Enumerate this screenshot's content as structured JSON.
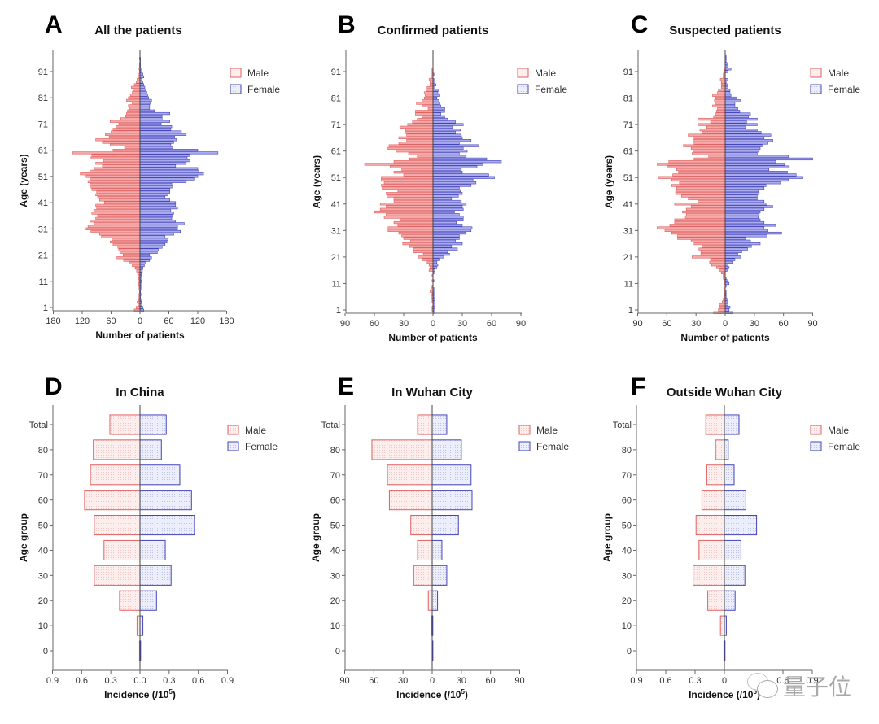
{
  "figure": {
    "watermark": "量子位",
    "colors": {
      "male_stroke": "#e06060",
      "male_fill_solid": "#f5a9a9",
      "female_stroke": "#4444bb",
      "female_fill_solid": "#a9abee",
      "male_fill_light": "#fdeeee",
      "female_fill_light": "#eceefb"
    }
  },
  "chart_data": [
    {
      "id": "A",
      "type": "bar",
      "orientation": "horizontal-population-pyramid",
      "letter": "A",
      "title": "All the patients",
      "xlabel": "Number of patients",
      "ylabel": "Age (years)",
      "xlim": [
        -180,
        180
      ],
      "x_ticks": [
        180,
        120,
        60,
        0,
        60,
        120,
        180
      ],
      "y_ticks": [
        "1",
        "11",
        "21",
        "31",
        "41",
        "51",
        "61",
        "71",
        "81",
        "91"
      ],
      "ylim": [
        0,
        99
      ],
      "legend": [
        "Male",
        "Female"
      ],
      "legend_position": "top-right",
      "ages_start": 0,
      "series": [
        {
          "name": "Male",
          "values": [
            12,
            8,
            4,
            6,
            3,
            2,
            2,
            1,
            2,
            2,
            3,
            2,
            3,
            4,
            5,
            7,
            10,
            16,
            22,
            34,
            48,
            35,
            42,
            44,
            46,
            56,
            62,
            58,
            80,
            84,
            102,
            112,
            108,
            96,
            104,
            92,
            88,
            100,
            96,
            90,
            92,
            74,
            84,
            88,
            92,
            90,
            100,
            102,
            104,
            108,
            102,
            112,
            124,
            104,
            96,
            78,
            92,
            76,
            104,
            100,
            140,
            56,
            32,
            62,
            78,
            92,
            64,
            72,
            60,
            56,
            50,
            44,
            62,
            40,
            30,
            28,
            26,
            22,
            24,
            16,
            28,
            24,
            20,
            16,
            14,
            18,
            12,
            8,
            6,
            4,
            2,
            1,
            2,
            1,
            1,
            0,
            1,
            0,
            0,
            0
          ]
        },
        {
          "name": "Female",
          "values": [
            8,
            6,
            4,
            3,
            2,
            1,
            2,
            1,
            2,
            2,
            2,
            3,
            2,
            3,
            3,
            5,
            6,
            9,
            12,
            20,
            24,
            20,
            36,
            38,
            46,
            52,
            56,
            58,
            52,
            70,
            84,
            78,
            78,
            92,
            74,
            66,
            68,
            70,
            64,
            78,
            74,
            74,
            62,
            52,
            58,
            62,
            62,
            68,
            66,
            96,
            112,
            120,
            132,
            122,
            120,
            74,
            96,
            104,
            98,
            104,
            162,
            120,
            68,
            64,
            70,
            76,
            72,
            96,
            86,
            64,
            66,
            44,
            62,
            46,
            46,
            62,
            30,
            20,
            20,
            22,
            24,
            18,
            16,
            14,
            12,
            10,
            8,
            6,
            4,
            8,
            6,
            2,
            2,
            1,
            1,
            1,
            1,
            0,
            0,
            0
          ]
        }
      ]
    },
    {
      "id": "B",
      "type": "bar",
      "orientation": "horizontal-population-pyramid",
      "letter": "B",
      "title": "Confirmed patients",
      "xlabel": "Number of patients",
      "ylabel": "Age (years)",
      "xlim": [
        -90,
        90
      ],
      "x_ticks": [
        90,
        60,
        30,
        0,
        30,
        60,
        90
      ],
      "y_ticks": [
        "1",
        "11",
        "21",
        "31",
        "41",
        "51",
        "61",
        "71",
        "81",
        "91"
      ],
      "ylim": [
        0,
        99
      ],
      "legend": [
        "Male",
        "Female"
      ],
      "legend_position": "top-right",
      "ages_start": 0,
      "series": [
        {
          "name": "Male",
          "values": [
            0,
            1,
            1,
            0,
            1,
            1,
            2,
            1,
            3,
            2,
            1,
            0,
            1,
            0,
            1,
            0,
            4,
            3,
            4,
            6,
            11,
            15,
            10,
            20,
            20,
            24,
            31,
            23,
            30,
            32,
            35,
            46,
            46,
            36,
            40,
            34,
            50,
            48,
            60,
            54,
            48,
            54,
            40,
            40,
            47,
            48,
            36,
            52,
            53,
            50,
            53,
            53,
            30,
            40,
            32,
            44,
            70,
            40,
            24,
            16,
            25,
            38,
            47,
            45,
            35,
            27,
            35,
            27,
            29,
            28,
            34,
            26,
            21,
            16,
            11,
            18,
            18,
            5,
            11,
            17,
            11,
            9,
            8,
            9,
            7,
            6,
            3,
            3,
            4,
            2,
            1,
            1,
            1,
            0,
            0,
            0,
            0,
            0,
            0,
            0
          ]
        },
        {
          "name": "Female",
          "values": [
            1,
            1,
            2,
            1,
            1,
            2,
            1,
            1,
            1,
            1,
            0,
            0,
            1,
            0,
            0,
            1,
            2,
            4,
            5,
            4,
            7,
            11,
            17,
            15,
            25,
            19,
            30,
            23,
            27,
            27,
            34,
            39,
            40,
            30,
            24,
            31,
            31,
            27,
            22,
            31,
            30,
            34,
            29,
            19,
            26,
            30,
            28,
            27,
            39,
            44,
            41,
            63,
            57,
            30,
            29,
            45,
            51,
            70,
            55,
            34,
            27,
            35,
            31,
            47,
            27,
            39,
            30,
            29,
            23,
            28,
            20,
            31,
            23,
            15,
            12,
            8,
            12,
            12,
            8,
            7,
            6,
            4,
            7,
            5,
            6,
            1,
            3,
            1,
            1,
            0,
            1,
            0,
            0,
            0,
            0,
            0,
            0,
            0,
            0,
            0
          ]
        }
      ]
    },
    {
      "id": "C",
      "type": "bar",
      "orientation": "horizontal-population-pyramid",
      "letter": "C",
      "title": "Suspected patients",
      "xlabel": "Number of patients",
      "ylabel": "Age (years)",
      "xlim": [
        -90,
        90
      ],
      "x_ticks": [
        90,
        60,
        30,
        0,
        30,
        60,
        90
      ],
      "y_ticks": [
        "1",
        "11",
        "21",
        "31",
        "41",
        "51",
        "61",
        "71",
        "81",
        "91"
      ],
      "ylim": [
        0,
        99
      ],
      "legend": [
        "Male",
        "Female"
      ],
      "legend_position": "top-right",
      "ages_start": 0,
      "series": [
        {
          "name": "Male",
          "values": [
            12,
            7,
            6,
            6,
            3,
            2,
            1,
            1,
            1,
            1,
            0,
            1,
            1,
            2,
            2,
            4,
            6,
            9,
            14,
            16,
            15,
            34,
            25,
            25,
            27,
            24,
            32,
            35,
            49,
            49,
            55,
            62,
            70,
            57,
            52,
            52,
            41,
            40,
            44,
            40,
            35,
            52,
            28,
            38,
            45,
            51,
            51,
            50,
            55,
            47,
            55,
            69,
            54,
            48,
            50,
            60,
            70,
            58,
            32,
            17,
            34,
            33,
            35,
            43,
            32,
            33,
            32,
            38,
            24,
            26,
            19,
            28,
            15,
            28,
            12,
            10,
            9,
            8,
            13,
            10,
            11,
            10,
            13,
            8,
            7,
            4,
            4,
            4,
            5,
            2,
            2,
            1,
            1,
            0,
            0,
            0,
            0,
            0,
            0,
            0
          ]
        },
        {
          "name": "Female",
          "values": [
            8,
            4,
            5,
            3,
            2,
            2,
            1,
            1,
            1,
            0,
            1,
            4,
            3,
            1,
            0,
            0,
            2,
            4,
            3,
            8,
            10,
            16,
            13,
            17,
            23,
            27,
            36,
            26,
            21,
            43,
            58,
            44,
            40,
            52,
            40,
            36,
            34,
            35,
            36,
            40,
            49,
            43,
            40,
            33,
            33,
            35,
            34,
            40,
            42,
            57,
            65,
            80,
            73,
            64,
            45,
            66,
            61,
            52,
            90,
            65,
            33,
            35,
            36,
            38,
            44,
            49,
            40,
            47,
            37,
            33,
            21,
            33,
            22,
            33,
            24,
            26,
            15,
            13,
            10,
            10,
            16,
            12,
            6,
            5,
            5,
            3,
            2,
            1,
            3,
            0,
            0,
            3,
            6,
            3,
            2,
            1,
            1,
            1,
            0,
            0
          ]
        }
      ]
    },
    {
      "id": "D",
      "type": "bar",
      "orientation": "horizontal-population-pyramid",
      "letter": "D",
      "title": "In China",
      "xlabel": "Incidence (/10^5)",
      "ylabel": "Age group",
      "xlim": [
        -0.9,
        0.9
      ],
      "x_ticks": [
        "0.9",
        "0.6",
        "0.3",
        "0.0",
        "0.3",
        "0.6",
        "0.9"
      ],
      "categories": [
        "0",
        "10",
        "20",
        "30",
        "40",
        "50",
        "60",
        "70",
        "80",
        "Total"
      ],
      "legend": [
        "Male",
        "Female"
      ],
      "legend_position": "top-right",
      "series": [
        {
          "name": "Male",
          "values": [
            0.005,
            0.03,
            0.21,
            0.47,
            0.37,
            0.47,
            0.57,
            0.51,
            0.48,
            0.31
          ]
        },
        {
          "name": "Female",
          "values": [
            0.005,
            0.03,
            0.17,
            0.32,
            0.26,
            0.56,
            0.53,
            0.41,
            0.22,
            0.27
          ]
        }
      ]
    },
    {
      "id": "E",
      "type": "bar",
      "orientation": "horizontal-population-pyramid",
      "letter": "E",
      "title": "In Wuhan City",
      "xlabel": "Incidence (/10^5)",
      "ylabel": "Age group",
      "xlim": [
        -90,
        90
      ],
      "x_ticks": [
        "90",
        "60",
        "30",
        "0",
        "30",
        "60",
        "90"
      ],
      "categories": [
        "0",
        "10",
        "20",
        "30",
        "40",
        "50",
        "60",
        "70",
        "80",
        "Total"
      ],
      "legend": [
        "Male",
        "Female"
      ],
      "legend_position": "top-right",
      "series": [
        {
          "name": "Male",
          "values": [
            0,
            0.5,
            4,
            19,
            15,
            22,
            44,
            46,
            62,
            15
          ]
        },
        {
          "name": "Female",
          "values": [
            0,
            0.5,
            5.5,
            15,
            10,
            27,
            41,
            40,
            30,
            15
          ]
        }
      ]
    },
    {
      "id": "F",
      "type": "bar",
      "orientation": "horizontal-population-pyramid",
      "letter": "F",
      "title": "Outside Wuhan City",
      "xlabel": "Incidence (/10^5)",
      "ylabel": "Age group",
      "xlim": [
        -0.9,
        0.9
      ],
      "x_ticks": [
        "0.9",
        "0.6",
        "0.3",
        "0",
        "0.6",
        "0.9"
      ],
      "x_tick_values": [
        -0.9,
        -0.6,
        -0.3,
        0,
        0.6,
        0.9
      ],
      "categories": [
        "0",
        "10",
        "20",
        "30",
        "40",
        "50",
        "60",
        "70",
        "80",
        "Total"
      ],
      "legend": [
        "Male",
        "Female"
      ],
      "legend_position": "top-right",
      "series": [
        {
          "name": "Male",
          "values": [
            0.005,
            0.04,
            0.17,
            0.32,
            0.26,
            0.29,
            0.23,
            0.18,
            0.09,
            0.19
          ]
        },
        {
          "name": "Female",
          "values": [
            0.005,
            0.02,
            0.11,
            0.21,
            0.17,
            0.33,
            0.22,
            0.1,
            0.04,
            0.15
          ]
        }
      ]
    }
  ]
}
